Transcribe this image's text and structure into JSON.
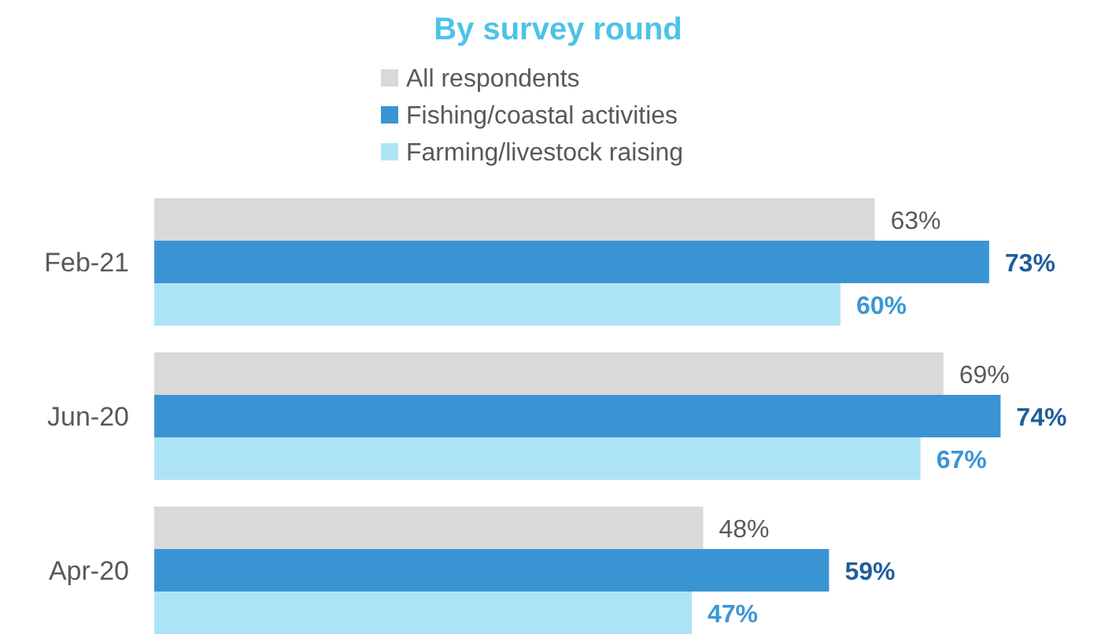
{
  "chart_data": {
    "type": "bar",
    "orientation": "horizontal",
    "subtitle": "By survey round",
    "categories": [
      "Feb-21",
      "Jun-20",
      "Apr-20"
    ],
    "series": [
      {
        "name": "All respondents",
        "color": "#d9d9d9",
        "values": [
          63,
          69,
          48
        ],
        "value_labels": [
          "63%",
          "69%",
          "48%"
        ]
      },
      {
        "name": "Fishing/coastal activities",
        "color": "#3a94d3",
        "values": [
          73,
          74,
          59
        ],
        "value_labels": [
          "73%",
          "74%",
          "59%"
        ]
      },
      {
        "name": "Farming/livestock raising",
        "color": "#ade4f5",
        "values": [
          60,
          67,
          47
        ],
        "value_labels": [
          "60%",
          "67%",
          "47%"
        ]
      }
    ],
    "legend": "top",
    "tick_labels": "y"
  }
}
